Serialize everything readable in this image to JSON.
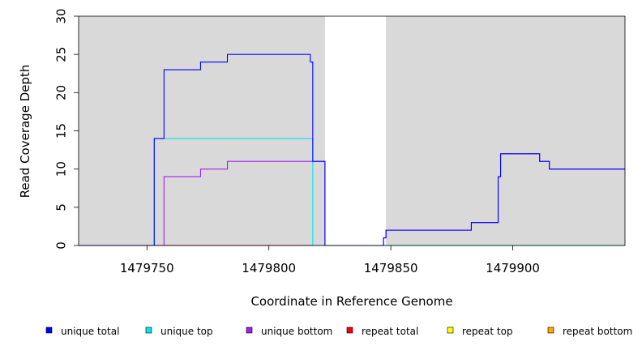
{
  "chart_data": {
    "type": "line",
    "title": "",
    "xlabel": "Coordinate in Reference Genome",
    "ylabel": "Read Coverage Depth",
    "xlim": [
      1479722,
      1479946
    ],
    "ylim": [
      0,
      30
    ],
    "x_ticks": [
      1479750,
      1479800,
      1479850,
      1479900
    ],
    "y_ticks": [
      0,
      5,
      10,
      15,
      20,
      25,
      30
    ],
    "grid": false,
    "legend_position": "bottom",
    "background_bands": [
      {
        "x": [
          1479722,
          1479823
        ]
      },
      {
        "x": [
          1479848,
          1479946
        ]
      }
    ],
    "series": [
      {
        "name": "unique total",
        "color": "#0000ff",
        "steps": [
          [
            1479722,
            0
          ],
          [
            1479753,
            14
          ],
          [
            1479757,
            23
          ],
          [
            1479772,
            24
          ],
          [
            1479783,
            25
          ],
          [
            1479817,
            24
          ],
          [
            1479818,
            11
          ],
          [
            1479823,
            0
          ],
          [
            1479847,
            1
          ],
          [
            1479848,
            2
          ],
          [
            1479883,
            3
          ],
          [
            1479894,
            9
          ],
          [
            1479895,
            12
          ],
          [
            1479911,
            11
          ],
          [
            1479915,
            10
          ],
          [
            1479946,
            10
          ]
        ]
      },
      {
        "name": "unique top",
        "color": "#00e5ee",
        "steps": [
          [
            1479722,
            0
          ],
          [
            1479753,
            14
          ],
          [
            1479818,
            0
          ],
          [
            1479946,
            0
          ]
        ]
      },
      {
        "name": "unique bottom",
        "color": "#a020f0",
        "steps": [
          [
            1479722,
            0
          ],
          [
            1479757,
            9
          ],
          [
            1479772,
            10
          ],
          [
            1479783,
            11
          ],
          [
            1479823,
            0
          ],
          [
            1479847,
            1
          ],
          [
            1479848,
            2
          ],
          [
            1479883,
            3
          ],
          [
            1479894,
            9
          ],
          [
            1479895,
            12
          ],
          [
            1479911,
            11
          ],
          [
            1479915,
            10
          ],
          [
            1479946,
            10
          ]
        ]
      },
      {
        "name": "repeat total",
        "color": "#ff0000",
        "steps": [
          [
            1479722,
            0
          ],
          [
            1479946,
            0
          ]
        ]
      },
      {
        "name": "repeat top",
        "color": "#ffff00",
        "steps": [
          [
            1479722,
            0
          ],
          [
            1479946,
            0
          ]
        ]
      },
      {
        "name": "repeat bottom",
        "color": "#ffa500",
        "steps": [
          [
            1479722,
            0
          ],
          [
            1479946,
            0
          ]
        ]
      }
    ]
  }
}
